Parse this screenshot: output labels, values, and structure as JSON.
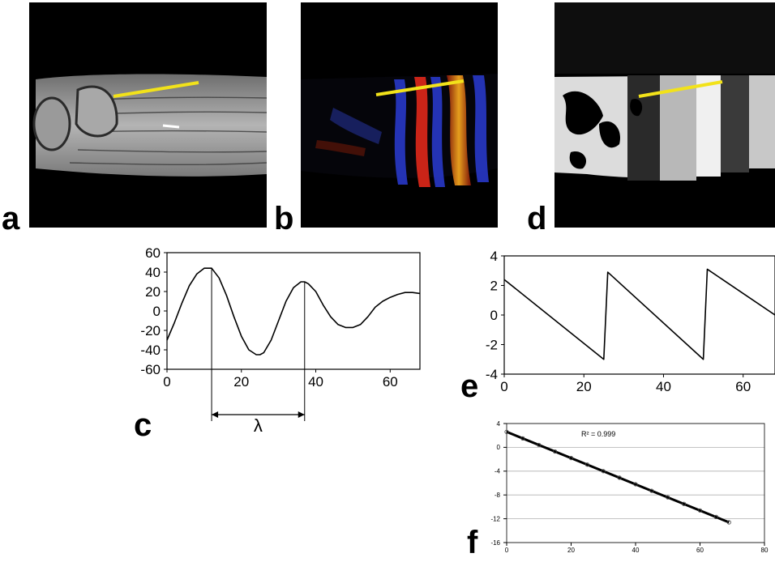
{
  "panels": {
    "a": "a",
    "b": "b",
    "c": "c",
    "d": "d",
    "e": "e",
    "f": "f"
  },
  "colors": {
    "profile_line": "#f2e21a",
    "wave_red": "#e0281a",
    "wave_blue": "#2838c8",
    "background": "#000000"
  },
  "chart_data": [
    {
      "panel": "c",
      "type": "line",
      "x": [
        0,
        2,
        4,
        6,
        8,
        10,
        12,
        14,
        16,
        18,
        20,
        22,
        24,
        25,
        26,
        28,
        30,
        32,
        34,
        36,
        37,
        38,
        40,
        42,
        44,
        46,
        48,
        50,
        52,
        54,
        56,
        58,
        60,
        62,
        64,
        66,
        68
      ],
      "y": [
        -30,
        -12,
        8,
        26,
        38,
        44,
        44,
        34,
        16,
        -6,
        -26,
        -40,
        -45,
        -45,
        -43,
        -30,
        -10,
        10,
        24,
        30,
        30,
        28,
        20,
        6,
        -6,
        -14,
        -17,
        -17,
        -14,
        -6,
        4,
        10,
        14,
        17,
        19,
        19,
        18
      ],
      "xlim": [
        0,
        68
      ],
      "ylim": [
        -60,
        60
      ],
      "xticks": [
        "0",
        "20",
        "40",
        "60"
      ],
      "yticks": [
        "60",
        "40",
        "20",
        "0",
        "-20",
        "-40",
        "-60"
      ],
      "annotation": "λ",
      "wavelength_markers_x": [
        12,
        37
      ]
    },
    {
      "panel": "e",
      "type": "line",
      "x": [
        0,
        25,
        26,
        50,
        51,
        68
      ],
      "y": [
        2.4,
        -3.0,
        2.9,
        -3.0,
        3.1,
        0.0
      ],
      "xlim": [
        0,
        68
      ],
      "ylim": [
        -4,
        4
      ],
      "xticks": [
        "0",
        "20",
        "40",
        "60"
      ],
      "yticks": [
        "4",
        "2",
        "0",
        "-2",
        "-4"
      ]
    },
    {
      "panel": "f",
      "type": "scatter",
      "x": [
        0,
        5,
        10,
        15,
        20,
        25,
        30,
        35,
        40,
        45,
        50,
        55,
        60,
        65,
        69
      ],
      "y": [
        2.6,
        1.5,
        0.4,
        -0.7,
        -1.8,
        -2.9,
        -4.0,
        -5.1,
        -6.2,
        -7.3,
        -8.4,
        -9.5,
        -10.6,
        -11.7,
        -12.6
      ],
      "xlim": [
        0,
        80
      ],
      "ylim": [
        -16,
        4
      ],
      "xticks": [
        "0",
        "20",
        "40",
        "60",
        "80"
      ],
      "yticks": [
        "4",
        "0",
        "-4",
        "-8",
        "-12",
        "-16"
      ],
      "annotation": "R² = 0.999",
      "grid": true
    }
  ]
}
